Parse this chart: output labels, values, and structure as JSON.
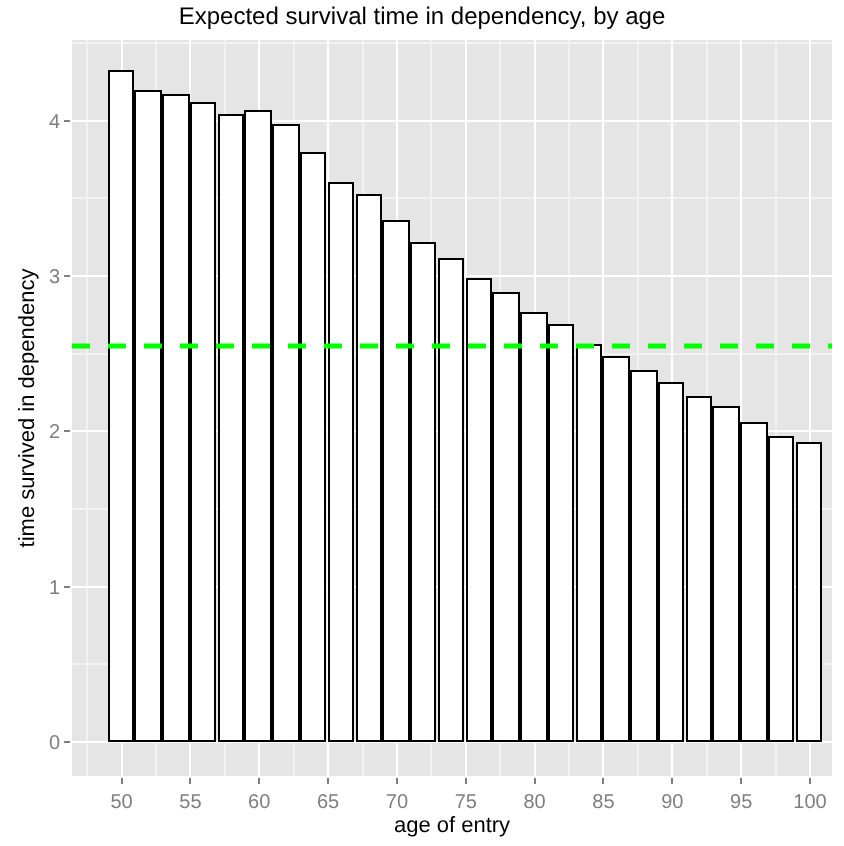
{
  "chart_data": {
    "type": "bar",
    "title": "Expected survival time in dependency, by age",
    "xlabel": "age of entry",
    "ylabel": "time survived in dependency",
    "x": [
      50,
      52,
      54,
      56,
      58,
      60,
      62,
      64,
      66,
      68,
      70,
      72,
      74,
      76,
      78,
      80,
      82,
      84,
      86,
      88,
      90,
      92,
      94,
      96,
      98,
      100
    ],
    "values": [
      4.31,
      4.19,
      4.16,
      4.11,
      4.03,
      4.05,
      3.97,
      3.79,
      3.59,
      3.52,
      3.35,
      3.2,
      3.1,
      2.98,
      2.88,
      2.75,
      2.68,
      2.55,
      2.47,
      2.38,
      2.3,
      2.21,
      2.15,
      2.05,
      1.96,
      1.92
    ],
    "color": "#ffffff",
    "xlim": [
      46.4,
      101.6
    ],
    "xticks": [
      50,
      55,
      60,
      65,
      70,
      75,
      80,
      85,
      90,
      95,
      100
    ],
    "ylim": [
      -0.22,
      4.52
    ],
    "yticks": [
      0,
      1,
      2,
      3,
      4
    ],
    "grid": true,
    "ref_lines": [
      {
        "axis": "y",
        "value": 2.55,
        "color": "#00ff00",
        "line_style": "dashed"
      }
    ]
  }
}
